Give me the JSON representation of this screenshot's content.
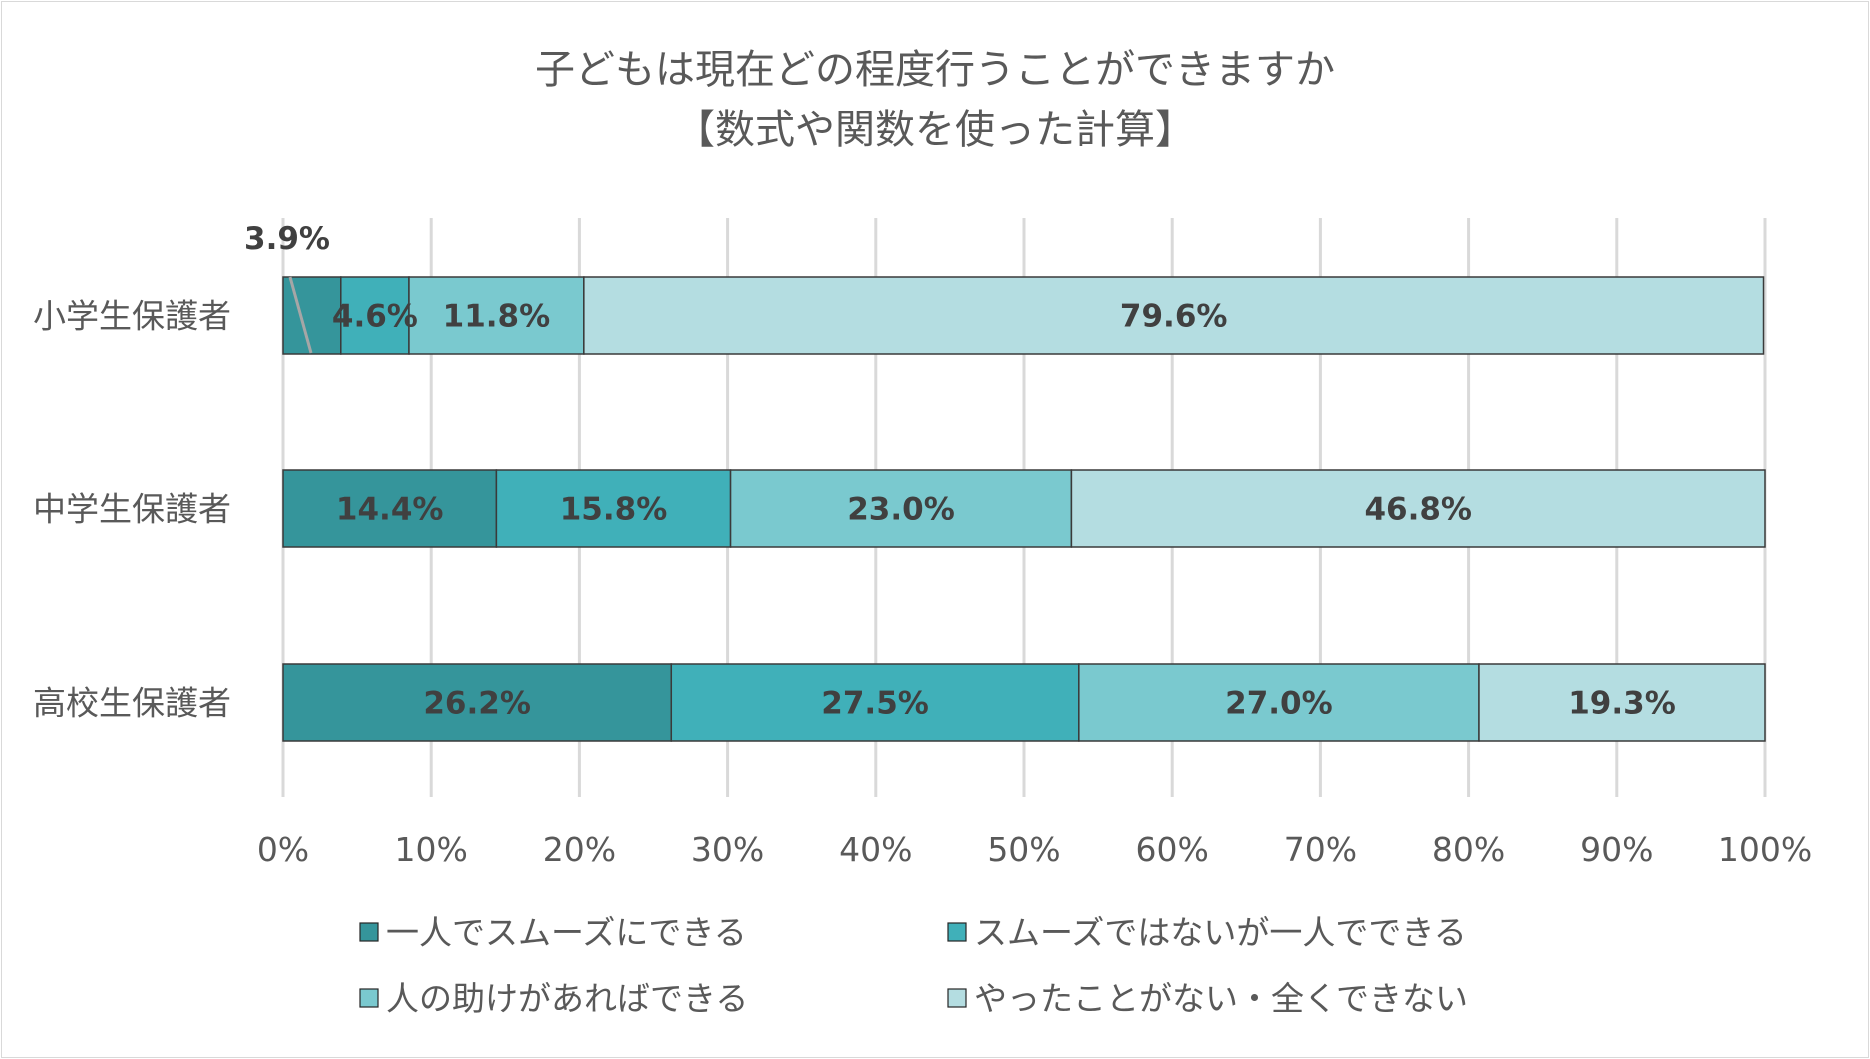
{
  "chart_data": {
    "type": "bar",
    "orientation": "horizontal",
    "stacked": "100%",
    "title": [
      "子どもは現在どの程度行うことができますか",
      "【数式や関数を使った計算】"
    ],
    "categories": [
      "小学生保護者",
      "中学生保護者",
      "高校生保護者"
    ],
    "series": [
      {
        "name": "一人でスムーズにできる",
        "color": "#35959b",
        "values": [
          3.9,
          14.4,
          26.2
        ]
      },
      {
        "name": "スムーズではないが一人でできる",
        "color": "#40b0b9",
        "values": [
          4.6,
          15.8,
          27.5
        ]
      },
      {
        "name": "人の助けがあればできる",
        "color": "#7ac9cf",
        "values": [
          11.8,
          23.0,
          27.0
        ]
      },
      {
        "name": "やったことがない・全くできない",
        "color": "#b4dde1",
        "values": [
          79.6,
          46.8,
          19.3
        ]
      }
    ],
    "xlim": [
      0,
      100
    ],
    "xticks": [
      "0%",
      "10%",
      "20%",
      "30%",
      "40%",
      "50%",
      "60%",
      "70%",
      "80%",
      "90%",
      "100%"
    ],
    "grid": true,
    "legend": "bottom",
    "label_suffix": "%"
  }
}
